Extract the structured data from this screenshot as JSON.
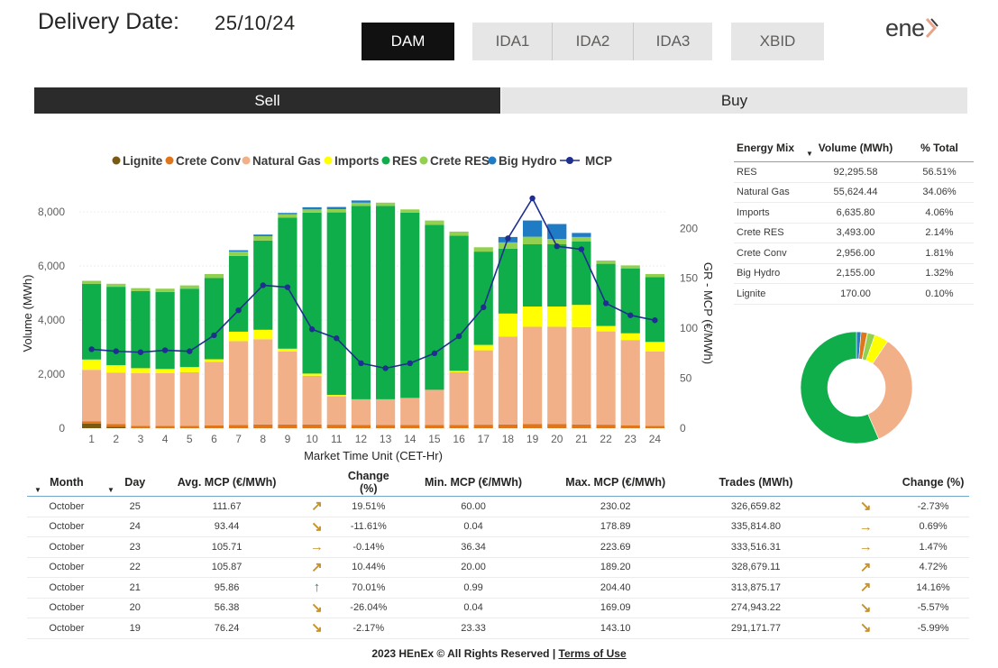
{
  "header": {
    "delivery_label": "Delivery Date:",
    "delivery_value": "25/10/24",
    "logo_text": "ene",
    "markets": [
      {
        "label": "DAM",
        "active": true
      },
      {
        "label": "IDA1",
        "active": false
      },
      {
        "label": "IDA2",
        "active": false
      },
      {
        "label": "IDA3",
        "active": false
      },
      {
        "label": "XBID",
        "active": false
      }
    ],
    "side": {
      "sell": "Sell",
      "buy": "Buy"
    }
  },
  "colors": {
    "Lignite": "#7a5a12",
    "Crete Conv": "#e0761c",
    "Natural Gas": "#f2b089",
    "Imports": "#ffff00",
    "RES": "#0fae4b",
    "Crete RES": "#92d050",
    "Big Hydro": "#1f7bc4",
    "MCP": "#1e2f8f"
  },
  "chart_data": {
    "type": "bar",
    "title": "",
    "xlabel": "Market Time Unit (CET-Hr)",
    "ylabel": "Volume (MWh)",
    "y2label": "GR - MCP (€/MWh)",
    "ylim": [
      0,
      8500
    ],
    "y2lim": [
      0,
      230
    ],
    "yticks": [
      "0",
      "2,000",
      "4,000",
      "6,000",
      "8,000"
    ],
    "y2ticks": [
      "0",
      "50",
      "100",
      "150",
      "200"
    ],
    "legend_position": "top",
    "categories": [
      "1",
      "2",
      "3",
      "4",
      "5",
      "6",
      "7",
      "8",
      "9",
      "10",
      "11",
      "12",
      "13",
      "14",
      "15",
      "16",
      "17",
      "18",
      "19",
      "20",
      "21",
      "22",
      "23",
      "24"
    ],
    "series": [
      {
        "name": "Lignite",
        "values": [
          170,
          60,
          0,
          0,
          0,
          0,
          0,
          0,
          0,
          0,
          0,
          0,
          0,
          0,
          0,
          0,
          0,
          0,
          0,
          0,
          0,
          0,
          0,
          0
        ]
      },
      {
        "name": "Crete Conv",
        "values": [
          90,
          90,
          90,
          90,
          90,
          100,
          120,
          140,
          140,
          140,
          130,
          120,
          120,
          120,
          120,
          120,
          130,
          140,
          150,
          150,
          140,
          130,
          110,
          90
        ]
      },
      {
        "name": "Natural Gas",
        "values": [
          1900,
          1900,
          1950,
          1950,
          1980,
          2350,
          3100,
          3150,
          2700,
          1800,
          1050,
          950,
          950,
          1000,
          1300,
          1950,
          2750,
          3250,
          3600,
          3600,
          3600,
          3450,
          3150,
          2750
        ]
      },
      {
        "name": "Imports",
        "values": [
          380,
          280,
          180,
          150,
          190,
          100,
          350,
          350,
          100,
          80,
          50,
          0,
          0,
          0,
          0,
          50,
          200,
          850,
          750,
          750,
          820,
          200,
          250,
          350
        ]
      },
      {
        "name": "RES",
        "values": [
          2800,
          2900,
          2850,
          2850,
          2900,
          3000,
          2800,
          3300,
          4850,
          5950,
          6750,
          7150,
          7150,
          6850,
          6100,
          5000,
          3450,
          2400,
          2300,
          2300,
          2350,
          2300,
          2400,
          2400
        ]
      },
      {
        "name": "Crete RES",
        "values": [
          110,
          110,
          110,
          120,
          120,
          150,
          160,
          160,
          120,
          120,
          120,
          120,
          120,
          120,
          160,
          150,
          160,
          230,
          280,
          200,
          160,
          120,
          110,
          110
        ]
      },
      {
        "name": "Big Hydro",
        "values": [
          0,
          0,
          0,
          0,
          0,
          0,
          50,
          60,
          50,
          80,
          80,
          80,
          0,
          0,
          0,
          0,
          0,
          200,
          600,
          550,
          150,
          0,
          0,
          0
        ]
      }
    ],
    "mcp": {
      "name": "MCP",
      "values": [
        79,
        77,
        76,
        78,
        77,
        93,
        118,
        143,
        141,
        99,
        90,
        65,
        60,
        65,
        75,
        92,
        121,
        190,
        230,
        182,
        179,
        125,
        113,
        108
      ]
    }
  },
  "energy_mix": {
    "headers": {
      "mix": "Energy Mix",
      "volume": "Volume (MWh)",
      "pct": "% Total"
    },
    "rows": [
      {
        "name": "RES",
        "volume": "92,295.58",
        "pct": "56.51%",
        "value": 56.51
      },
      {
        "name": "Natural Gas",
        "volume": "55,624.44",
        "pct": "34.06%",
        "value": 34.06
      },
      {
        "name": "Imports",
        "volume": "6,635.80",
        "pct": "4.06%",
        "value": 4.06
      },
      {
        "name": "Crete RES",
        "volume": "3,493.00",
        "pct": "2.14%",
        "value": 2.14
      },
      {
        "name": "Crete Conv",
        "volume": "2,956.00",
        "pct": "1.81%",
        "value": 1.81
      },
      {
        "name": "Big Hydro",
        "volume": "2,155.00",
        "pct": "1.32%",
        "value": 1.32
      },
      {
        "name": "Lignite",
        "volume": "170.00",
        "pct": "0.10%",
        "value": 0.1
      }
    ]
  },
  "daily_table": {
    "headers": {
      "month": "Month",
      "day": "Day",
      "avg": "Avg. MCP (€/MWh)",
      "chg": "Change (%)",
      "min": "Min. MCP (€/MWh)",
      "max": "Max. MCP (€/MWh)",
      "trades": "Trades (MWh)",
      "chg2": "Change (%)"
    },
    "rows": [
      {
        "month": "October",
        "day": "25",
        "avg": "111.67",
        "arrow": "↗",
        "arrow_color": "#c8912a",
        "chg": "19.51%",
        "min": "60.00",
        "max": "230.02",
        "trades": "326,659.82",
        "arrow2": "↘",
        "arrow2_color": "#c8912a",
        "chg2": "-2.73%"
      },
      {
        "month": "October",
        "day": "24",
        "avg": "93.44",
        "arrow": "↘",
        "arrow_color": "#c8912a",
        "chg": "-11.61%",
        "min": "0.04",
        "max": "178.89",
        "trades": "335,814.80",
        "arrow2": "→",
        "arrow2_color": "#c8912a",
        "chg2": "0.69%"
      },
      {
        "month": "October",
        "day": "23",
        "avg": "105.71",
        "arrow": "→",
        "arrow_color": "#c8912a",
        "chg": "-0.14%",
        "min": "36.34",
        "max": "223.69",
        "trades": "333,516.31",
        "arrow2": "→",
        "arrow2_color": "#c8912a",
        "chg2": "1.47%"
      },
      {
        "month": "October",
        "day": "22",
        "avg": "105.87",
        "arrow": "↗",
        "arrow_color": "#c8912a",
        "chg": "10.44%",
        "min": "20.00",
        "max": "189.20",
        "trades": "328,679.11",
        "arrow2": "↗",
        "arrow2_color": "#c8912a",
        "chg2": "4.72%"
      },
      {
        "month": "October",
        "day": "21",
        "avg": "95.86",
        "arrow": "↑",
        "arrow_color": "#2e8b57",
        "chg": "70.01%",
        "min": "0.99",
        "max": "204.40",
        "trades": "313,875.17",
        "arrow2": "↗",
        "arrow2_color": "#c8912a",
        "chg2": "14.16%"
      },
      {
        "month": "October",
        "day": "20",
        "avg": "56.38",
        "arrow": "↘",
        "arrow_color": "#c8912a",
        "chg": "-26.04%",
        "min": "0.04",
        "max": "169.09",
        "trades": "274,943.22",
        "arrow2": "↘",
        "arrow2_color": "#c8912a",
        "chg2": "-5.57%"
      },
      {
        "month": "October",
        "day": "19",
        "avg": "76.24",
        "arrow": "↘",
        "arrow_color": "#c8912a",
        "chg": "-2.17%",
        "min": "23.33",
        "max": "143.10",
        "trades": "291,171.77",
        "arrow2": "↘",
        "arrow2_color": "#c8912a",
        "chg2": "-5.99%"
      }
    ]
  },
  "footer": {
    "text": "2023 HEnEx © All Rights Reserved | ",
    "link": "Terms of Use"
  }
}
